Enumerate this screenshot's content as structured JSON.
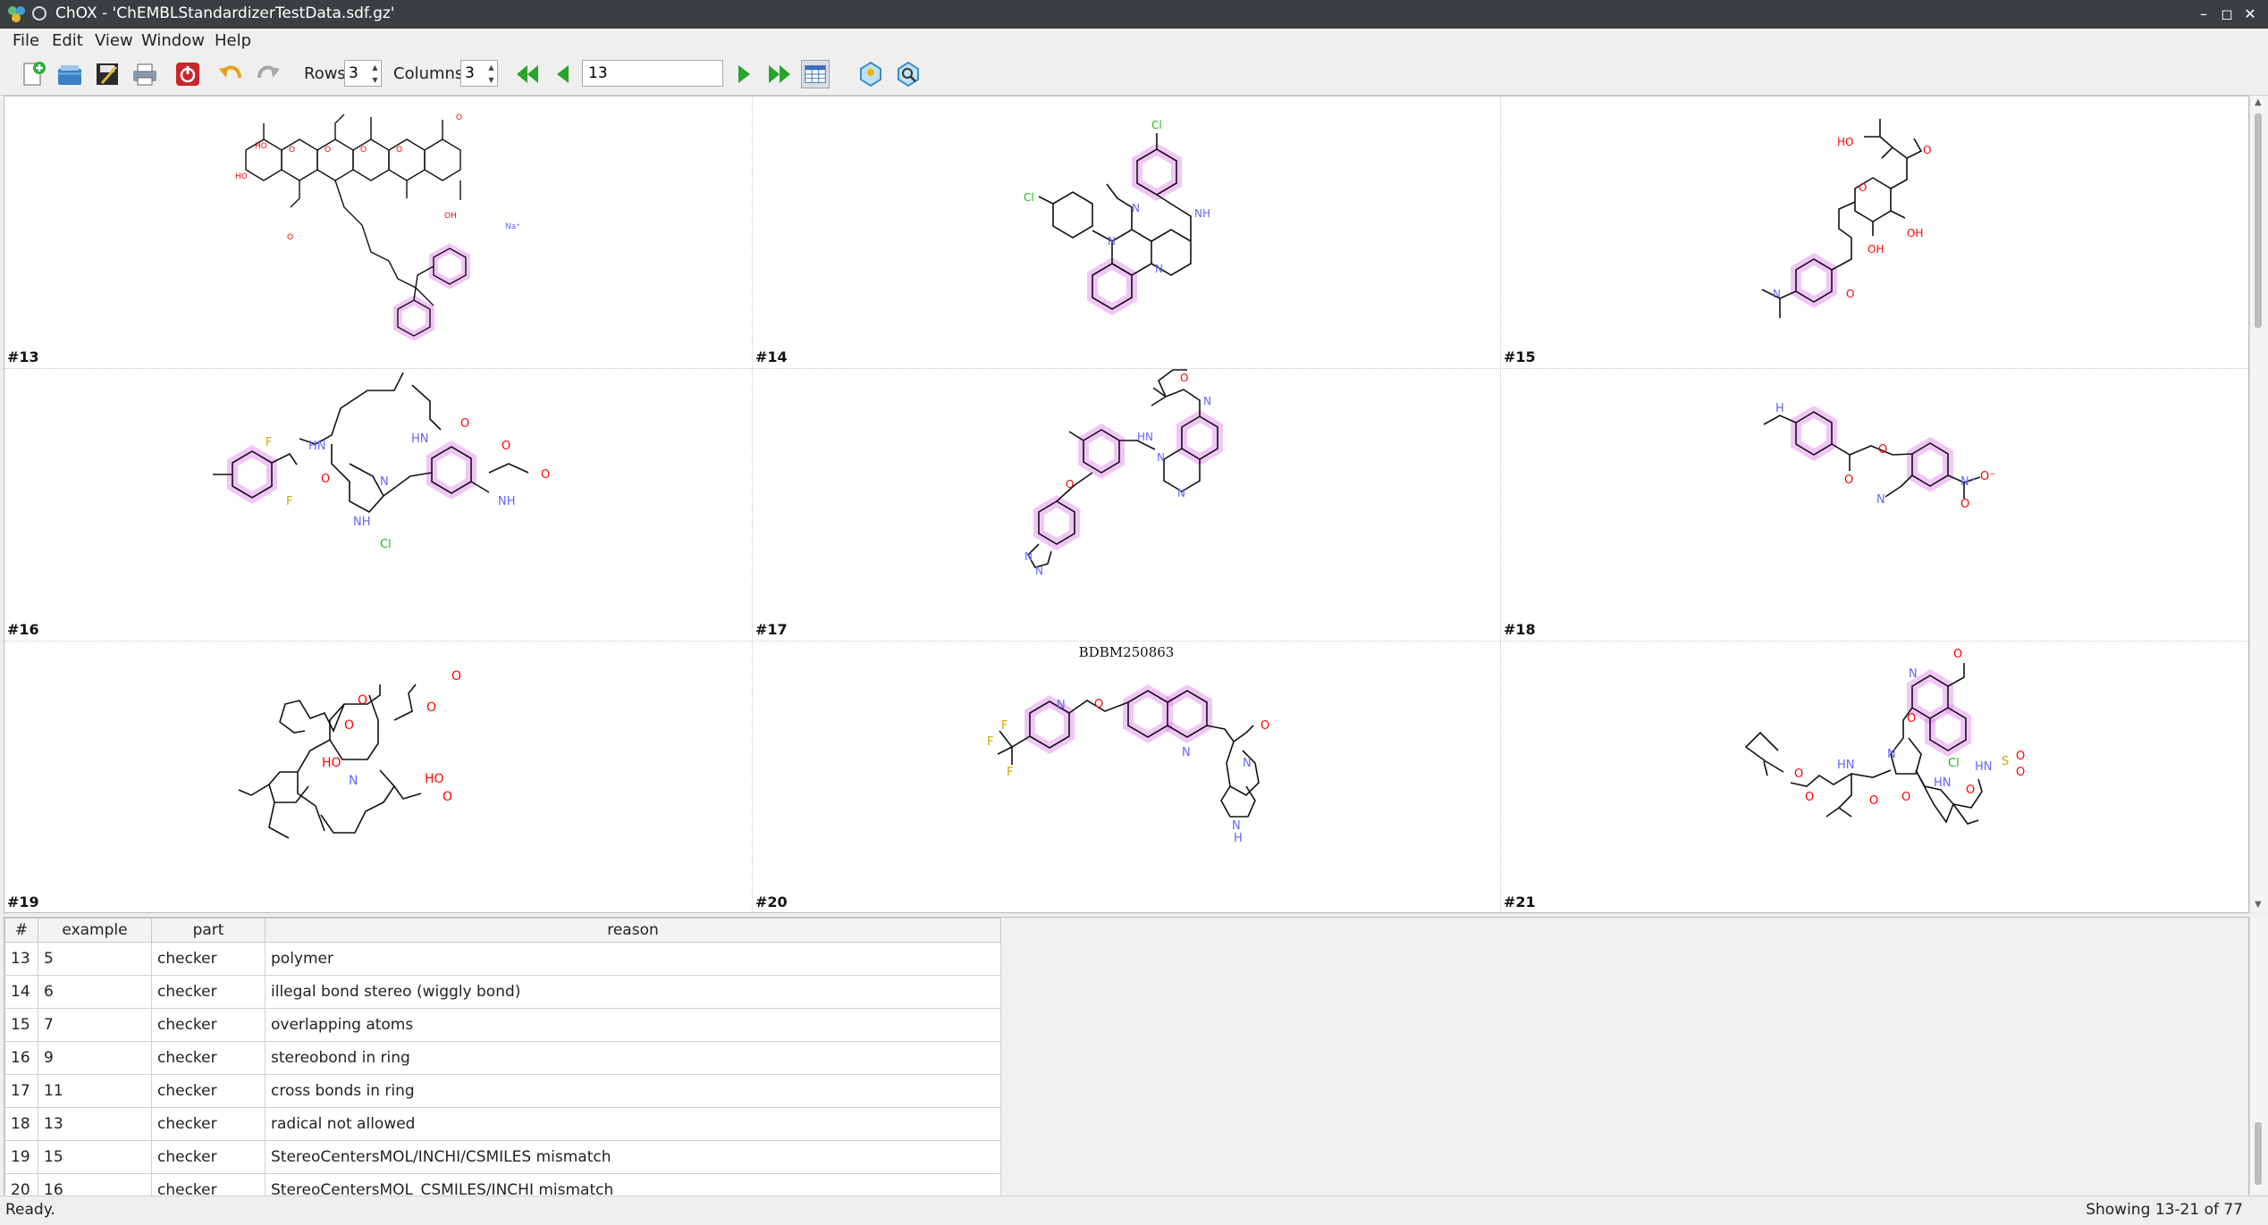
{
  "window": {
    "app_name": "ChOX",
    "title": "ChOX - 'ChEMBLStandardizerTestData.sdf.gz'",
    "minimize_icon": "minimize-icon",
    "maximize_icon": "maximize-icon",
    "close_icon": "close-icon"
  },
  "menubar": {
    "items": [
      "File",
      "Edit",
      "View",
      "Window",
      "Help"
    ]
  },
  "toolbar": {
    "rows_label": "Rows:",
    "rows_value": "3",
    "columns_label": "Columns:",
    "columns_value": "3",
    "record_value": "13",
    "icons": [
      "new-file-icon",
      "open-file-icon",
      "save-icon",
      "print-icon",
      "quit-icon",
      "undo-icon",
      "redo-icon",
      "first-page-icon",
      "previous-page-icon",
      "next-page-icon",
      "last-page-icon",
      "table-view-icon",
      "select-icon",
      "search-icon"
    ]
  },
  "grid": {
    "cells": [
      {
        "number": "#13",
        "caption": ""
      },
      {
        "number": "#14",
        "caption": ""
      },
      {
        "number": "#15",
        "caption": ""
      },
      {
        "number": "#16",
        "caption": ""
      },
      {
        "number": "#17",
        "caption": ""
      },
      {
        "number": "#18",
        "caption": ""
      },
      {
        "number": "#19",
        "caption": ""
      },
      {
        "number": "#20",
        "caption": "BDBM250863"
      },
      {
        "number": "#21",
        "caption": ""
      }
    ],
    "highlight_color": "#e37ef0",
    "atom_colors": {
      "O": "#ff0000",
      "N": "#6464ff",
      "Cl": "#1fb81f",
      "F": "#d9a000"
    },
    "atom_labels": {
      "c13_na": "Na⁺",
      "c14_cl": "Cl",
      "c14_nh": "NH",
      "c14_n": "N",
      "c15_ho": "HO",
      "c15_oh": "OH",
      "c15_o": "O",
      "c15_n": "N",
      "c16_f": "F",
      "c16_o": "O",
      "c16_hn": "HN",
      "c16_nh": "NH",
      "c16_n": "N",
      "c16_cl": "Cl",
      "c17_o": "O",
      "c17_n": "N",
      "c17_hn": "HN",
      "c18_nh": "H",
      "c18_n": "N",
      "c18_o": "O",
      "c18_nminus": "O⁻",
      "c18_nplus": "N⁺",
      "c19_o": "O",
      "c19_ho": "HO",
      "c19_n": "N",
      "c20_f": "F",
      "c20_n": "N",
      "c20_o": "O",
      "c20_h": "H",
      "c21_o": "O",
      "c21_n": "N",
      "c21_hn": "HN",
      "c21_cl": "Cl",
      "c21_s": "S"
    }
  },
  "table": {
    "columns": [
      "#",
      "example",
      "part",
      "reason"
    ],
    "rows": [
      [
        "13",
        "5",
        "checker",
        "polymer"
      ],
      [
        "14",
        "6",
        "checker",
        "illegal bond stereo (wiggly bond)"
      ],
      [
        "15",
        "7",
        "checker",
        "overlapping atoms"
      ],
      [
        "16",
        "9",
        "checker",
        "stereobond in ring"
      ],
      [
        "17",
        "11",
        "checker",
        "cross bonds in ring"
      ],
      [
        "18",
        "13",
        "checker",
        "radical not allowed"
      ],
      [
        "19",
        "15",
        "checker",
        "StereoCentersMOL/INCHI/CSMILES mismatch"
      ],
      [
        "20",
        "16",
        "checker",
        "StereoCentersMOL_CSMILES/INCHI mismatch"
      ]
    ]
  },
  "status": {
    "left": "Ready.",
    "right": "Showing 13-21 of 77"
  }
}
